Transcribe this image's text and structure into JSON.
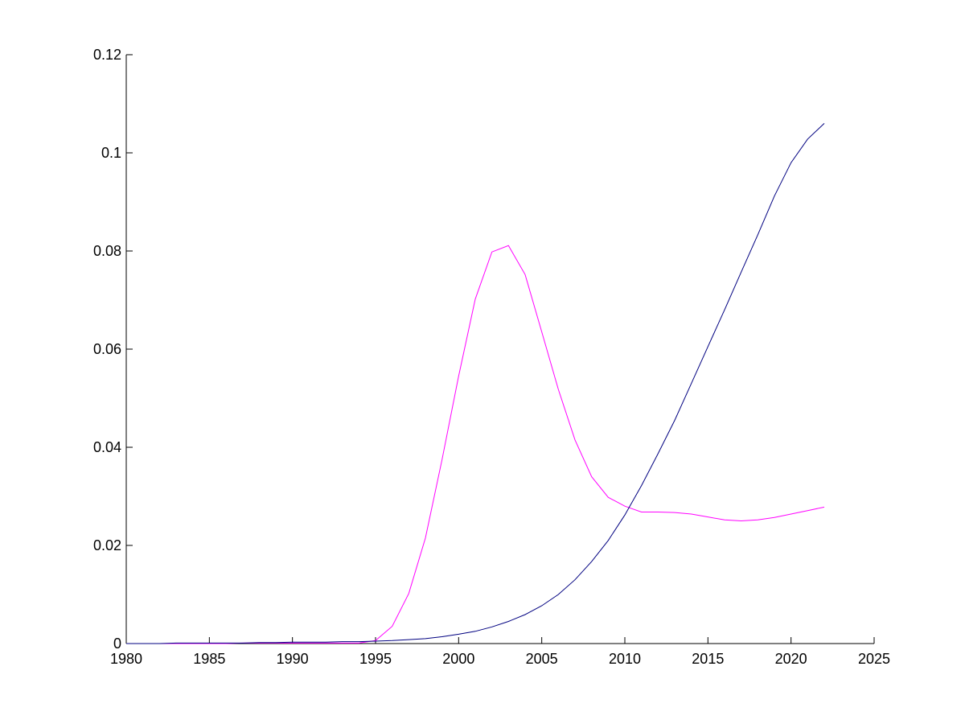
{
  "chart_data": {
    "type": "line",
    "title": "",
    "xlabel": "",
    "ylabel": "",
    "xlim": [
      1980,
      2025
    ],
    "ylim": [
      0,
      0.12
    ],
    "xticks": [
      1980,
      1985,
      1990,
      1995,
      2000,
      2005,
      2010,
      2015,
      2020,
      2025
    ],
    "xtick_labels": [
      "1980",
      "1985",
      "1990",
      "1995",
      "2000",
      "2005",
      "2010",
      "2015",
      "2020",
      "2025"
    ],
    "yticks": [
      0,
      0.02,
      0.04,
      0.06,
      0.08,
      0.1,
      0.12
    ],
    "ytick_labels": [
      "0",
      "0.02",
      "0.04",
      "0.06",
      "0.08",
      "0.1",
      "0.12"
    ],
    "grid": false,
    "legend": "none",
    "series": [
      {
        "color": "#ff00ff",
        "x": [
          1980,
          1981,
          1982,
          1983,
          1984,
          1985,
          1986,
          1987,
          1988,
          1989,
          1990,
          1991,
          1992,
          1993,
          1994,
          1995,
          1996,
          1997,
          1998,
          1999,
          2000,
          2001,
          2002,
          2003,
          2004,
          2005,
          2006,
          2007,
          2008,
          2009,
          2010,
          2011,
          2012,
          2013,
          2014,
          2015,
          2016,
          2017,
          2018,
          2019,
          2020,
          2021,
          2022
        ],
        "y": [
          0,
          0,
          0,
          0,
          0,
          0,
          0,
          0.0001,
          0.0001,
          0.0001,
          0.0001,
          0.0001,
          0.0001,
          0.0001,
          0.0001,
          0.0006,
          0.0035,
          0.0102,
          0.0215,
          0.0375,
          0.0545,
          0.0702,
          0.0798,
          0.0811,
          0.0752,
          0.0635,
          0.0518,
          0.0415,
          0.034,
          0.0298,
          0.028,
          0.0268,
          0.0268,
          0.0267,
          0.0264,
          0.0258,
          0.0252,
          0.025,
          0.0252,
          0.0257,
          0.0264,
          0.0271,
          0.0278
        ]
      },
      {
        "color": "#000080",
        "x": [
          1980,
          1981,
          1982,
          1983,
          1984,
          1985,
          1986,
          1987,
          1988,
          1989,
          1990,
          1991,
          1992,
          1993,
          1994,
          1995,
          1996,
          1997,
          1998,
          1999,
          2000,
          2001,
          2002,
          2003,
          2004,
          2005,
          2006,
          2007,
          2008,
          2009,
          2010,
          2011,
          2012,
          2013,
          2014,
          2015,
          2016,
          2017,
          2018,
          2019,
          2020,
          2021,
          2022
        ],
        "y": [
          0,
          0,
          0,
          0.0001,
          0.0001,
          0.0001,
          0.0001,
          0.0001,
          0.0002,
          0.0002,
          0.0003,
          0.0003,
          0.0003,
          0.0004,
          0.0004,
          0.0005,
          0.0006,
          0.0008,
          0.001,
          0.0014,
          0.0019,
          0.0025,
          0.0034,
          0.0045,
          0.0059,
          0.0077,
          0.01,
          0.013,
          0.0167,
          0.021,
          0.0262,
          0.0322,
          0.0387,
          0.0455,
          0.053,
          0.0605,
          0.068,
          0.0757,
          0.0833,
          0.0912,
          0.098,
          0.1028,
          0.106
        ]
      }
    ]
  }
}
